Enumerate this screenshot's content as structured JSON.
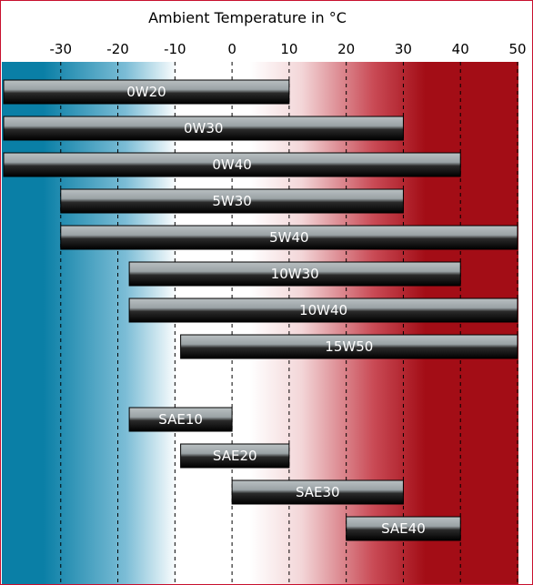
{
  "chart_data": {
    "type": "bar",
    "orientation": "horizontal-range",
    "title": "Ambient Temperature in °C",
    "xlabel": "Ambient Temperature in °C",
    "ylabel": "",
    "xlim": [
      -40,
      50
    ],
    "ticks": [
      -30,
      -20,
      -10,
      0,
      10,
      20,
      30,
      40,
      50
    ],
    "tick_labels": [
      "-30",
      "-20",
      "-10",
      "0",
      "10",
      "20",
      "30",
      "40",
      "50"
    ],
    "grid": "dashed vertical",
    "legend": "none",
    "background_gradient": {
      "cold_color": "#0a7fa6",
      "neutral_color": "#ffffff",
      "hot_color": "#a30d16"
    },
    "bars": [
      {
        "label": "0W20",
        "min": -40,
        "max": 10
      },
      {
        "label": "0W30",
        "min": -40,
        "max": 30
      },
      {
        "label": "0W40",
        "min": -40,
        "max": 40
      },
      {
        "label": "5W30",
        "min": -30,
        "max": 30
      },
      {
        "label": "5W40",
        "min": -30,
        "max": 50
      },
      {
        "label": "10W30",
        "min": -18,
        "max": 40
      },
      {
        "label": "10W40",
        "min": -18,
        "max": 50
      },
      {
        "label": "15W50",
        "min": -9,
        "max": 50
      },
      {
        "label": "SAE10",
        "min": -18,
        "max": 0
      },
      {
        "label": "SAE20",
        "min": -9,
        "max": 10
      },
      {
        "label": "SAE30",
        "min": 0,
        "max": 30
      },
      {
        "label": "SAE40",
        "min": 20,
        "max": 40
      }
    ]
  }
}
